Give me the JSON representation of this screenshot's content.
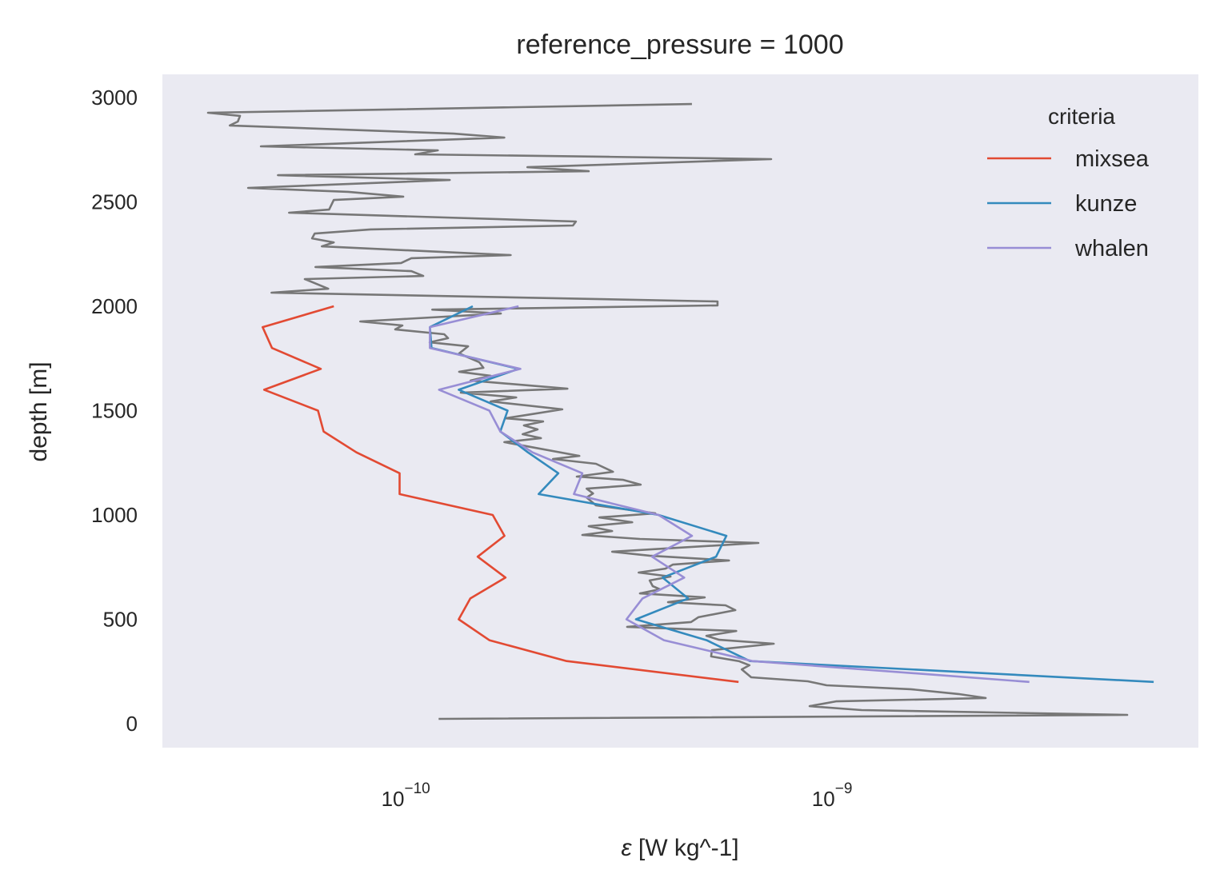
{
  "chart_data": {
    "type": "line",
    "title": "reference_pressure = 1000",
    "xlabel_symbol": "ε",
    "xlabel_rest": " [W kg^-1]",
    "ylabel": "depth [m]",
    "xscale": "log",
    "xlim_log10": [
      -10.552,
      -8.122
    ],
    "ylim": [
      -115,
      3111
    ],
    "grid": false,
    "background": "#EAEAF2",
    "yticks": [
      0,
      500,
      1000,
      1500,
      2000,
      2500,
      3000
    ],
    "ytick_labels": [
      "0",
      "500",
      "1000",
      "1500",
      "2000",
      "2500",
      "3000"
    ],
    "xticks_log10": [
      -10,
      -9
    ],
    "xtick_labels": [
      {
        "base": "10",
        "exp": "−10"
      },
      {
        "base": "10",
        "exp": "−9"
      }
    ],
    "legend": {
      "title": "criteria",
      "placement": "top-right",
      "entries": [
        "mixsea",
        "kunze",
        "whalen"
      ]
    },
    "series": [
      {
        "name": "mixsea",
        "color": "#E24A33",
        "in_legend": true,
        "depth": [
          200,
          300,
          400,
          500,
          600,
          700,
          800,
          900,
          1000,
          1100,
          1200,
          1300,
          1400,
          1500,
          1600,
          1700,
          1800,
          1900,
          2000
        ],
        "epsilon": [
          6.3e-10,
          2.49e-10,
          1.64e-10,
          1.39e-10,
          1.48e-10,
          1.79e-10,
          1.54e-10,
          1.78e-10,
          1.67e-10,
          1.01e-10,
          1.01e-10,
          8e-11,
          6.7e-11,
          6.5e-11,
          4.86e-11,
          6.6e-11,
          5.07e-11,
          4.82e-11,
          7.08e-11
        ]
      },
      {
        "name": "kunze",
        "color": "#348ABD",
        "in_legend": true,
        "depth": [
          200,
          300,
          400,
          500,
          600,
          700,
          800,
          900,
          1000,
          1100,
          1200,
          1300,
          1400,
          1500,
          1600,
          1700,
          1800,
          1900,
          2000
        ],
        "epsilon": [
          5.93e-09,
          6.7e-10,
          5.3e-10,
          3.62e-10,
          4.8e-10,
          4.18e-10,
          5.58e-10,
          5.9e-10,
          4.09e-10,
          2.14e-10,
          2.38e-10,
          2.02e-10,
          1.74e-10,
          1.81e-10,
          1.39e-10,
          1.92e-10,
          1.2e-10,
          1.19e-10,
          1.5e-10
        ]
      },
      {
        "name": "whalen",
        "color": "#988ED5",
        "in_legend": true,
        "depth": [
          200,
          300,
          400,
          500,
          600,
          700,
          800,
          900,
          1000,
          1100,
          1200,
          1300,
          1400,
          1500,
          1600,
          1700,
          1800,
          1900,
          2000
        ],
        "epsilon": [
          3.03e-09,
          6.78e-10,
          4.21e-10,
          3.44e-10,
          3.75e-10,
          4.7e-10,
          3.95e-10,
          4.9e-10,
          4.09e-10,
          2.59e-10,
          2.71e-10,
          2.07e-10,
          1.74e-10,
          1.64e-10,
          1.25e-10,
          1.94e-10,
          1.19e-10,
          1.19e-10,
          1.92e-10
        ]
      },
      {
        "name": "",
        "color": "#777777",
        "in_legend": false,
        "depth": [
          23,
          42,
          65,
          84,
          107,
          123,
          142,
          165,
          184,
          203,
          222,
          260,
          280,
          299,
          322,
          352,
          383,
          402,
          421,
          444,
          464,
          487,
          510,
          544,
          567,
          582,
          605,
          624,
          644,
          659,
          686,
          705,
          724,
          743,
          762,
          782,
          805,
          824,
          866,
          885,
          904,
          923,
          946,
          965,
          988,
          1008,
          1046,
          1084,
          1103,
          1126,
          1145,
          1168,
          1184,
          1207,
          1245,
          1268,
          1283,
          1349,
          1368,
          1387,
          1410,
          1429,
          1448,
          1463,
          1506,
          1544,
          1563,
          1586,
          1605,
          1644,
          1667,
          1686,
          1705,
          1732,
          1774,
          1808,
          1827,
          1847,
          1866,
          1889,
          1908,
          1927,
          1965,
          1984,
          2004,
          2023,
          2065,
          2084,
          2130,
          2145,
          2168,
          2188,
          2207,
          2230,
          2245,
          2287,
          2306,
          2325,
          2348,
          2368,
          2387,
          2406,
          2448,
          2463,
          2509,
          2525,
          2548,
          2567,
          2605,
          2628,
          2647,
          2666,
          2705,
          2716,
          2728,
          2747,
          2766,
          2808,
          2827,
          2866,
          2885,
          2912,
          2927,
          2969
        ],
        "log10_epsilon": [
          -9.904,
          -8.289,
          -8.912,
          -9.034,
          -8.972,
          -8.621,
          -8.685,
          -8.797,
          -8.994,
          -9.038,
          -9.171,
          -9.193,
          -9.175,
          -9.199,
          -9.265,
          -9.263,
          -9.118,
          -9.246,
          -9.276,
          -9.206,
          -9.462,
          -9.312,
          -9.295,
          -9.208,
          -9.231,
          -9.366,
          -9.28,
          -9.432,
          -9.385,
          -9.402,
          -9.409,
          -9.36,
          -9.435,
          -9.372,
          -9.355,
          -9.223,
          -9.409,
          -9.497,
          -9.154,
          -9.432,
          -9.567,
          -9.497,
          -9.552,
          -9.45,
          -9.527,
          -9.396,
          -9.535,
          -9.557,
          -9.542,
          -9.557,
          -9.43,
          -9.471,
          -9.58,
          -9.495,
          -9.535,
          -9.636,
          -9.574,
          -9.75,
          -9.664,
          -9.707,
          -9.672,
          -9.704,
          -9.659,
          -9.747,
          -9.614,
          -9.782,
          -9.722,
          -9.852,
          -9.602,
          -9.829,
          -9.782,
          -9.856,
          -9.799,
          -9.809,
          -9.856,
          -9.835,
          -9.925,
          -9.882,
          -9.891,
          -10.006,
          -9.989,
          -10.088,
          -9.758,
          -9.919,
          -9.25,
          -9.25,
          -10.296,
          -10.163,
          -10.218,
          -9.94,
          -9.968,
          -10.193,
          -9.992,
          -9.968,
          -9.735,
          -10.178,
          -10.15,
          -10.201,
          -10.195,
          -10.064,
          -9.589,
          -9.582,
          -10.255,
          -10.161,
          -10.15,
          -9.987,
          -10.116,
          -10.351,
          -9.878,
          -10.281,
          -9.552,
          -9.696,
          -9.124,
          -9.505,
          -9.959,
          -9.906,
          -10.321,
          -9.75,
          -9.869,
          -10.394,
          -10.375,
          -10.37,
          -10.445,
          -9.31
        ]
      }
    ]
  }
}
